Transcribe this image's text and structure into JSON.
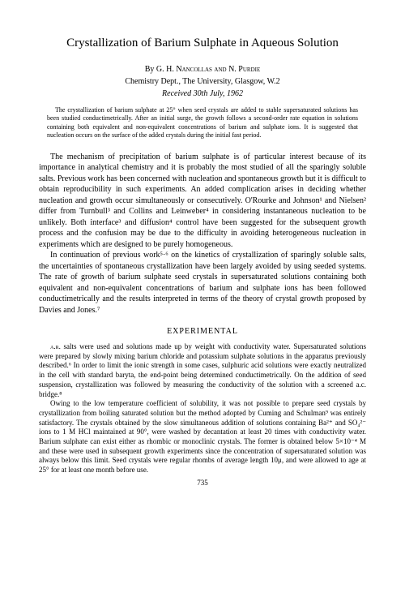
{
  "title": "Crystallization of Barium Sulphate in Aqueous Solution",
  "byline_prefix": "By ",
  "authors": "G. H. Nancollas and N. Purdie",
  "affiliation": "Chemistry Dept., The University, Glasgow, W.2",
  "received": "Received 30th July, 1962",
  "abstract": "The crystallization of barium sulphate at 25° when seed crystals are added to stable supersaturated solutions has been studied conductimetrically. After an initial surge, the growth follows a second-order rate equation in solutions containing both equivalent and non-equivalent concentrations of barium and sulphate ions. It is suggested that nucleation occurs on the surface of the added crystals during the initial fast period.",
  "para1": "The mechanism of precipitation of barium sulphate is of particular interest because of its importance in analytical chemistry and it is probably the most studied of all the sparingly soluble salts. Previous work has been concerned with nucleation and spontaneous growth but it is difficult to obtain reproducibility in such experiments. An added complication arises in deciding whether nucleation and growth occur simultaneously or consecutively. O'Rourke and Johnson¹ and Nielsen² differ from Turnbull³ and Collins and Leinweber⁴ in considering instantaneous nucleation to be unlikely. Both interface³ and diffusion⁴ control have been suggested for the subsequent growth process and the confusion may be due to the difficulty in avoiding heterogeneous nucleation in experiments which are designed to be purely homogeneous.",
  "para2": "In continuation of previous work⁵⋅⁶ on the kinetics of crystallization of sparingly soluble salts, the uncertainties of spontaneous crystallization have been largely avoided by using seeded systems. The rate of growth of barium sulphate seed crystals in supersaturated solutions containing both equivalent and non-equivalent concentrations of barium and sulphate ions has been followed conductimetrically and the results interpreted in terms of the theory of crystal growth proposed by Davies and Jones.⁷",
  "section_head": "EXPERIMENTAL",
  "exp_lead": "a.r.",
  "exp1": " salts were used and solutions made up by weight with conductivity water. Supersaturated solutions were prepared by slowly mixing barium chloride and potassium sulphate solutions in the apparatus previously described.⁶ In order to limit the ionic strength in some cases, sulphuric acid solutions were exactly neutralized in the cell with standard baryta, the end-point being determined conductimetrically. On the addition of seed suspension, crystallization was followed by measuring the conductivity of the solution with a screened a.c. bridge.⁸",
  "exp2": "Owing to the low temperature coefficient of solubility, it was not possible to prepare seed crystals by crystallization from boiling saturated solution but the method adopted by Cuming and Schulman⁹ was entirely satisfactory. The crystals obtained by the slow simultaneous addition of solutions containing Ba²⁺ and SO₄²⁻ ions to 1 M HCl maintained at 90°, were washed by decantation at least 20 times with conductivity water. Barium sulphate can exist either as rhombic or monoclinic crystals. The former is obtained below 5×10⁻⁴ M and these were used in subsequent growth experiments since the concentration of supersaturated solution was always below this limit. Seed crystals were regular rhombs of average length 10μ, and were allowed to age at 25° for at least one month before use.",
  "page_number": "735",
  "colors": {
    "text": "#000000",
    "background": "#ffffff"
  },
  "typography": {
    "body_font": "Times New Roman",
    "title_size_pt": 15,
    "byline_size_pt": 10,
    "abstract_size_pt": 8,
    "body_size_pt": 10,
    "exp_size_pt": 9
  }
}
